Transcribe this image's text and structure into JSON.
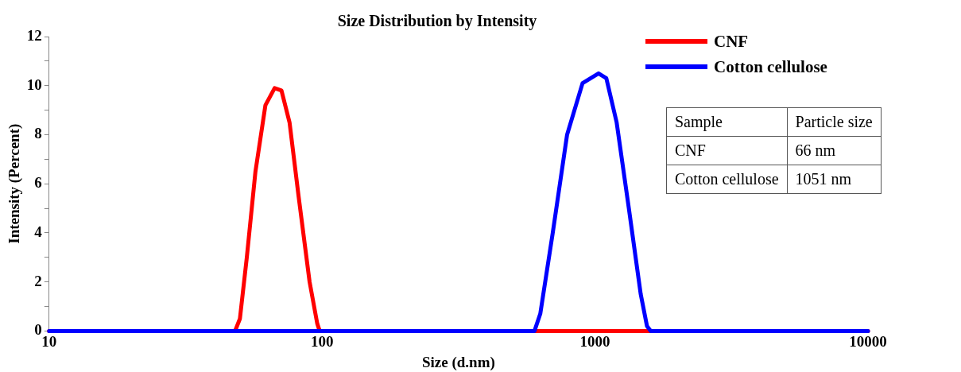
{
  "chart_data": {
    "type": "line",
    "title": "Size Distribution by Intensity",
    "xlabel": "Size (d.nm)",
    "ylabel": "Intensity (Percent)",
    "log": "x",
    "xlim": [
      10,
      10000
    ],
    "xticks": [
      10,
      100,
      1000,
      10000
    ],
    "ylim": [
      0,
      12
    ],
    "yticks": [
      0,
      {
        "value": 1,
        "label": null
      },
      2,
      {
        "value": 3,
        "label": null
      },
      4,
      {
        "value": 5,
        "label": null
      },
      6,
      {
        "value": 7,
        "label": null
      },
      8,
      {
        "value": 9,
        "label": null
      },
      10,
      {
        "value": 11,
        "label": null
      },
      12
    ],
    "grid": false,
    "legend": "top right",
    "marker": "none",
    "line_style": "solid",
    "series": [
      {
        "name": "CNF",
        "color": "#ff0000",
        "x": [
          10,
          48,
          50,
          53,
          57,
          62,
          67,
          71,
          76,
          82,
          90,
          96,
          98,
          10000
        ],
        "values": [
          0,
          0,
          0.5,
          3,
          6.5,
          9.2,
          9.9,
          9.8,
          8.5,
          5.5,
          2,
          0.3,
          0,
          0
        ]
      },
      {
        "name": "Cotton cellulose",
        "color": "#0000ff",
        "x": [
          10,
          600,
          630,
          700,
          790,
          900,
          1030,
          1100,
          1200,
          1330,
          1470,
          1550,
          1600,
          10000
        ],
        "values": [
          0,
          0,
          0.7,
          4,
          8,
          10.1,
          10.5,
          10.3,
          8.5,
          5,
          1.5,
          0.2,
          0,
          0
        ]
      }
    ],
    "annotations": [
      "Sample",
      "Particle size",
      "CNF",
      "66 nm",
      "Cotton cellulose",
      "1051 nm"
    ]
  }
}
